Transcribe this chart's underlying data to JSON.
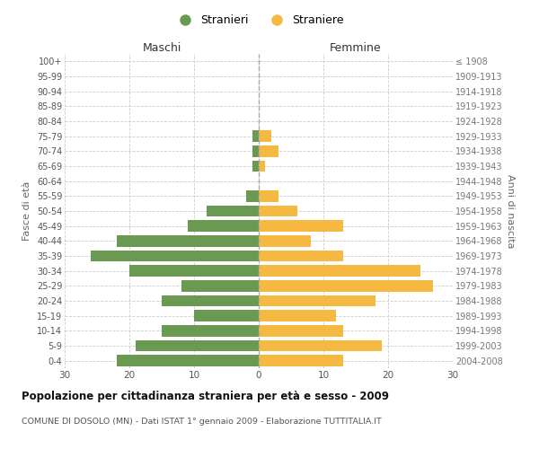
{
  "age_groups": [
    "100+",
    "95-99",
    "90-94",
    "85-89",
    "80-84",
    "75-79",
    "70-74",
    "65-69",
    "60-64",
    "55-59",
    "50-54",
    "45-49",
    "40-44",
    "35-39",
    "30-34",
    "25-29",
    "20-24",
    "15-19",
    "10-14",
    "5-9",
    "0-4"
  ],
  "birth_years": [
    "≤ 1908",
    "1909-1913",
    "1914-1918",
    "1919-1923",
    "1924-1928",
    "1929-1933",
    "1934-1938",
    "1939-1943",
    "1944-1948",
    "1949-1953",
    "1954-1958",
    "1959-1963",
    "1964-1968",
    "1969-1973",
    "1974-1978",
    "1979-1983",
    "1984-1988",
    "1989-1993",
    "1994-1998",
    "1999-2003",
    "2004-2008"
  ],
  "males": [
    0,
    0,
    0,
    0,
    0,
    1,
    1,
    1,
    0,
    2,
    8,
    11,
    22,
    26,
    20,
    12,
    15,
    10,
    15,
    19,
    22
  ],
  "females": [
    0,
    0,
    0,
    0,
    0,
    2,
    3,
    1,
    0,
    3,
    6,
    13,
    8,
    13,
    25,
    27,
    18,
    12,
    13,
    19,
    13
  ],
  "male_color": "#6a9a52",
  "female_color": "#f5b942",
  "background_color": "#ffffff",
  "grid_color": "#cccccc",
  "title": "Popolazione per cittadinanza straniera per età e sesso - 2009",
  "subtitle": "COMUNE DI DOSOLO (MN) - Dati ISTAT 1° gennaio 2009 - Elaborazione TUTTITALIA.IT",
  "xlabel_left": "Maschi",
  "xlabel_right": "Femmine",
  "ylabel_left": "Fasce di età",
  "ylabel_right": "Anni di nascita",
  "legend_male": "Stranieri",
  "legend_female": "Straniere",
  "xlim": 30,
  "bar_height": 0.75
}
